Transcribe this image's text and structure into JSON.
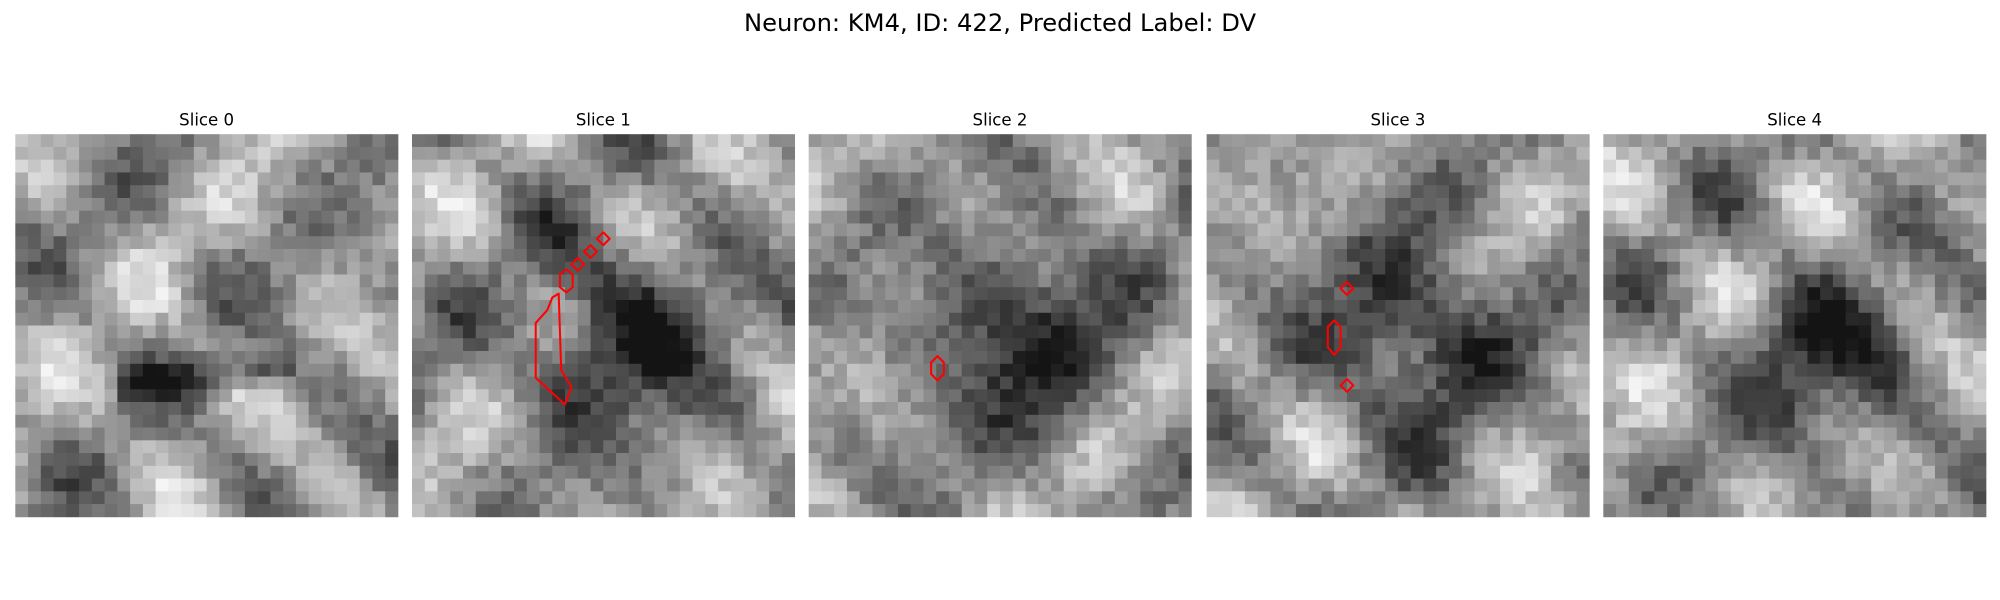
{
  "title": "Neuron: KM4, ID: 422, Predicted Label: DV",
  "panels": [
    {
      "title": "Slice 0"
    },
    {
      "title": "Slice 1"
    },
    {
      "title": "Slice 2"
    },
    {
      "title": "Slice 3"
    },
    {
      "title": "Slice 4"
    }
  ]
}
